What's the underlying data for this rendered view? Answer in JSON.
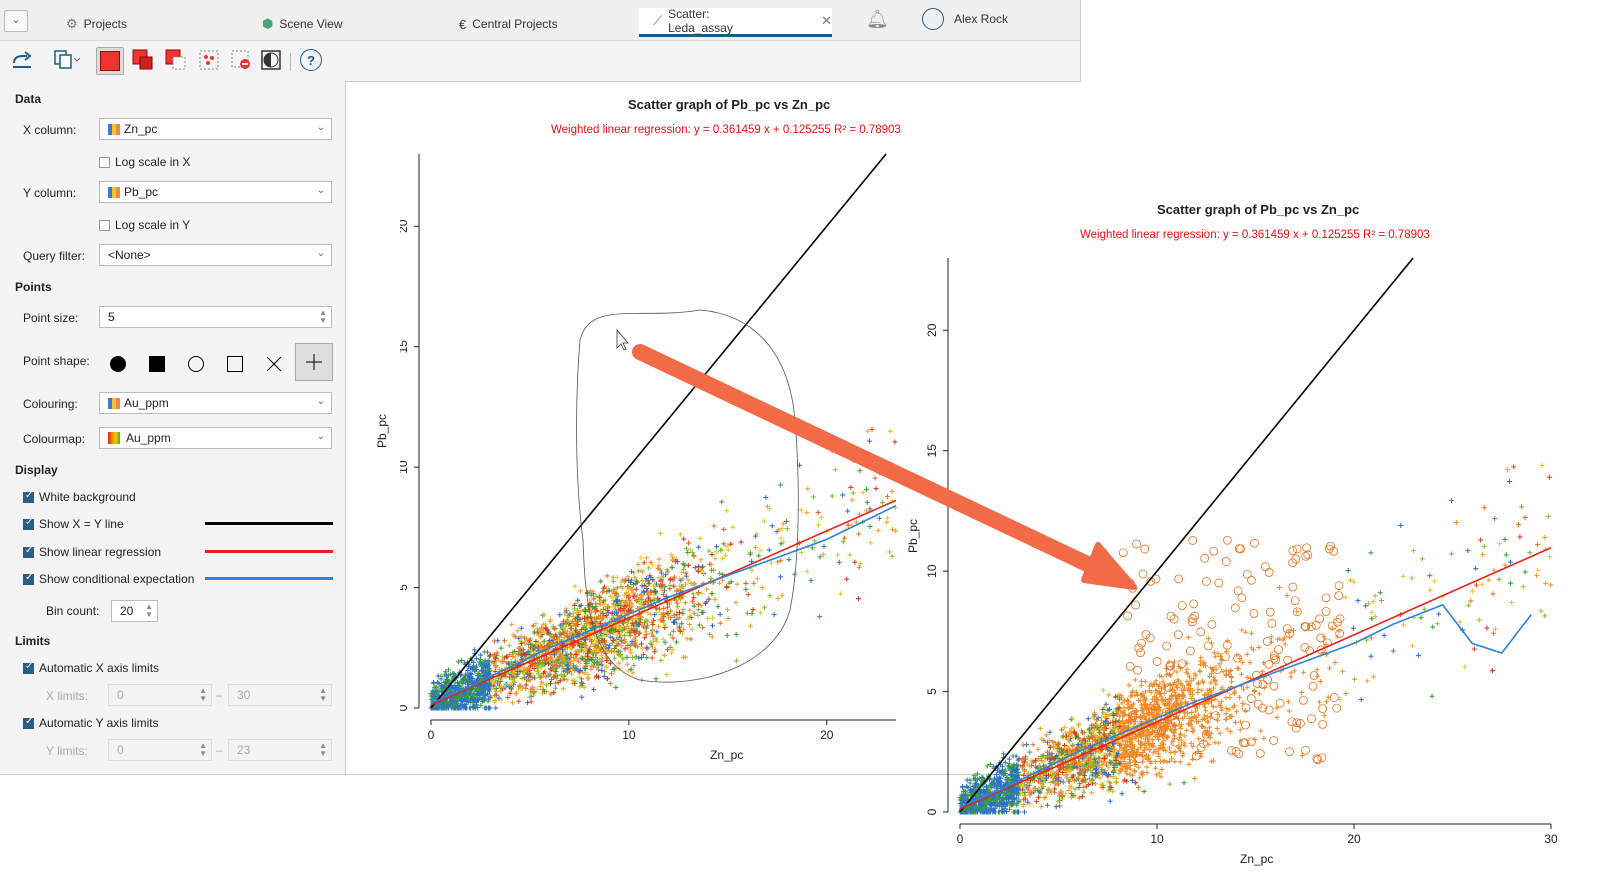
{
  "tabs": [
    {
      "label": "Projects",
      "icon": "projects-icon"
    },
    {
      "label": "Scene View",
      "icon": "scene-view-icon"
    },
    {
      "label": "Central Projects",
      "icon": "central-icon"
    },
    {
      "label": "Scatter: Leda_assay",
      "icon": "scatter-icon",
      "active": true
    }
  ],
  "user": {
    "name": "Alex Rock"
  },
  "panel": {
    "data_section": "Data",
    "x_column_label": "X column:",
    "x_column_value": "Zn_pc",
    "log_x_label": "Log scale in X",
    "y_column_label": "Y column:",
    "y_column_value": "Pb_pc",
    "log_y_label": "Log scale in Y",
    "query_filter_label": "Query filter:",
    "query_filter_value": "<None>",
    "points_section": "Points",
    "point_size_label": "Point size:",
    "point_size_value": "5",
    "point_shape_label": "Point shape:",
    "colouring_label": "Colouring:",
    "colouring_value": "Au_ppm",
    "colourmap_label": "Colourmap:",
    "colourmap_value": "Au_ppm",
    "display_section": "Display",
    "white_bg_label": "White background",
    "xy_line_label": "Show X = Y line",
    "linreg_label": "Show linear regression",
    "condexp_label": "Show conditional expectation",
    "bin_count_label": "Bin count:",
    "bin_count_value": "20",
    "limits_section": "Limits",
    "auto_x_label": "Automatic X axis limits",
    "x_limits_label": "X limits:",
    "x_limit_min": "0",
    "x_limit_max": "30",
    "auto_y_label": "Automatic Y axis limits",
    "y_limits_label": "Y limits:",
    "y_limit_min": "0",
    "y_limit_max": "23",
    "dash": "–"
  },
  "colors": {
    "xy_line": "#000000",
    "regression": "#e8231e",
    "cond_expectation": "#2a84e0",
    "accent": "#1c5f86"
  },
  "chart_data": [
    {
      "type": "scatter",
      "title": "Scatter graph of Pb_pc vs Zn_pc",
      "subtitle": "Weighted linear regression: y = 0.361459 x + 0.125255 R² = 0.78903",
      "xlabel": "Zn_pc",
      "ylabel": "Pb_pc",
      "xticks": [
        0,
        10,
        20
      ],
      "yticks": [
        0,
        5,
        10,
        15,
        20
      ],
      "xlim": [
        0,
        23.5
      ],
      "ylim": [
        0,
        23
      ],
      "regression": {
        "slope": 0.361459,
        "intercept": 0.125255
      },
      "cond_expectation": {
        "x": [
          0,
          2,
          4,
          6,
          8,
          10,
          12,
          14,
          16,
          18,
          20,
          22,
          23.5
        ],
        "y": [
          0.2,
          0.9,
          1.7,
          2.5,
          3.2,
          3.9,
          4.6,
          5.2,
          5.8,
          6.4,
          7.0,
          7.8,
          8.4
        ]
      }
    },
    {
      "type": "scatter",
      "title": "Scatter graph of Pb_pc vs Zn_pc",
      "subtitle": "Weighted linear regression: y = 0.361459 x + 0.125255 R² = 0.78903",
      "xlabel": "Zn_pc",
      "ylabel": "Pb_pc",
      "xticks": [
        0,
        10,
        20,
        30
      ],
      "yticks": [
        0,
        5,
        10,
        15,
        20
      ],
      "xlim": [
        0,
        30
      ],
      "ylim": [
        0,
        23
      ],
      "regression": {
        "slope": 0.361459,
        "intercept": 0.125255
      },
      "cond_expectation": {
        "x": [
          0,
          2,
          4,
          6,
          8,
          10,
          12,
          14,
          16,
          18,
          20,
          22,
          24.5,
          26,
          27.5,
          29
        ],
        "y": [
          0.2,
          0.9,
          1.7,
          2.5,
          3.2,
          3.9,
          4.6,
          5.2,
          5.8,
          6.4,
          7.0,
          7.8,
          8.6,
          7.0,
          6.6,
          8.2
        ]
      }
    }
  ]
}
